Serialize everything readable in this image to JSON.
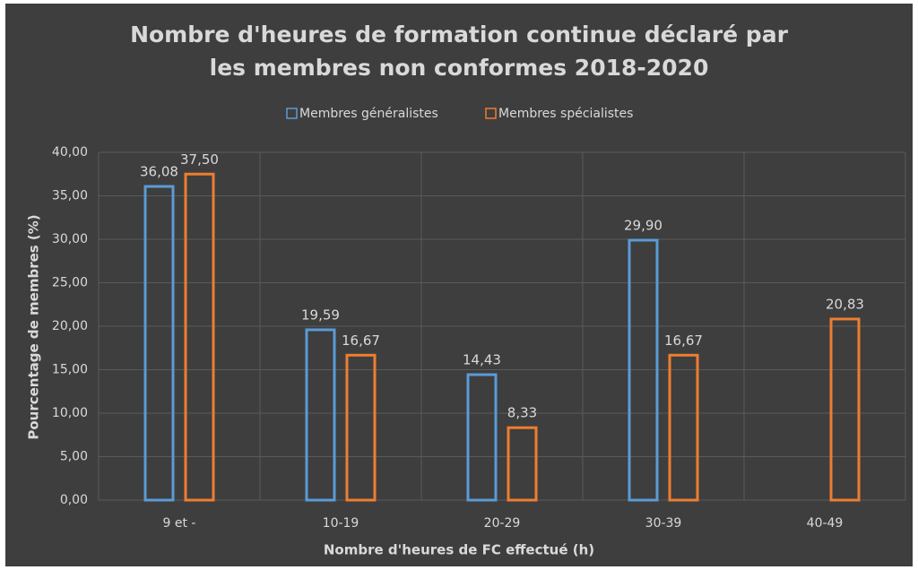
{
  "chart_data": {
    "type": "bar",
    "title": [
      "Nombre d'heures de formation continue déclaré par",
      "les  membres non conformes 2018-2020"
    ],
    "x_label": "Nombre d'heures de FC effectué (h)",
    "y_label": "Pourcentage de membres (%)",
    "categories": [
      "9 et -",
      "10-19",
      "20-29",
      "30-39",
      "40-49"
    ],
    "series": [
      {
        "name": "Membres généralistes",
        "color": "#5b9bd5",
        "values": [
          36.08,
          19.59,
          14.43,
          29.9,
          null
        ],
        "value_labels": [
          "36,08",
          "19,59",
          "14,43",
          "29,90",
          null
        ]
      },
      {
        "name": "Membres spécialistes",
        "color": "#ed7d31",
        "values": [
          37.5,
          16.67,
          8.33,
          16.67,
          20.83
        ],
        "value_labels": [
          "37,50",
          "16,67",
          "8,33",
          "16,67",
          "20,83"
        ]
      }
    ],
    "ylim": [
      0,
      40
    ],
    "yticks": [
      {
        "value": 0,
        "label": "0,00"
      },
      {
        "value": 5,
        "label": "5,00"
      },
      {
        "value": 10,
        "label": "10,00"
      },
      {
        "value": 15,
        "label": "15,00"
      },
      {
        "value": 20,
        "label": "20,00"
      },
      {
        "value": 25,
        "label": "25,00"
      },
      {
        "value": 30,
        "label": "30,00"
      },
      {
        "value": 35,
        "label": "35,00"
      },
      {
        "value": 40,
        "label": "40,00"
      }
    ],
    "grid": true,
    "legend": "top"
  }
}
